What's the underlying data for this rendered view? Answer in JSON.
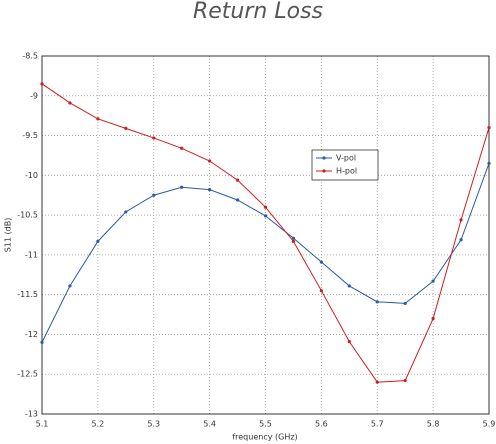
{
  "chart_data": {
    "type": "line",
    "title": "Return Loss",
    "x_label": "frequency (GHz)",
    "y_label": "S11 (dB)",
    "x": [
      5.1,
      5.15,
      5.2,
      5.25,
      5.3,
      5.35,
      5.4,
      5.45,
      5.5,
      5.55,
      5.6,
      5.65,
      5.7,
      5.75,
      5.8,
      5.85,
      5.9
    ],
    "series": [
      {
        "name": "V-pol",
        "color": "#2b5aa8",
        "values": [
          -12.1,
          -11.39,
          -10.83,
          -10.46,
          -10.25,
          -10.15,
          -10.18,
          -10.31,
          -10.51,
          -10.79,
          -11.09,
          -11.39,
          -11.59,
          -11.61,
          -11.33,
          -10.81,
          -9.85
        ]
      },
      {
        "name": "H-pol",
        "color": "#d41c1c",
        "values": [
          -8.85,
          -9.09,
          -9.29,
          -9.41,
          -9.53,
          -9.66,
          -9.82,
          -10.06,
          -10.4,
          -10.83,
          -11.45,
          -12.09,
          -12.6,
          -12.58,
          -11.8,
          -10.56,
          -9.4
        ]
      }
    ],
    "xlim": [
      5.1,
      5.9
    ],
    "xticks": [
      5.1,
      5.2,
      5.3,
      5.4,
      5.5,
      5.6,
      5.7,
      5.8,
      5.9
    ],
    "ylim": [
      -13,
      -8.5
    ],
    "yticks": [
      -13,
      -12.5,
      -12,
      -11.5,
      -11,
      -10.5,
      -10,
      -9.5,
      -9,
      -8.5
    ],
    "grid": true,
    "legend": "upper-right"
  }
}
